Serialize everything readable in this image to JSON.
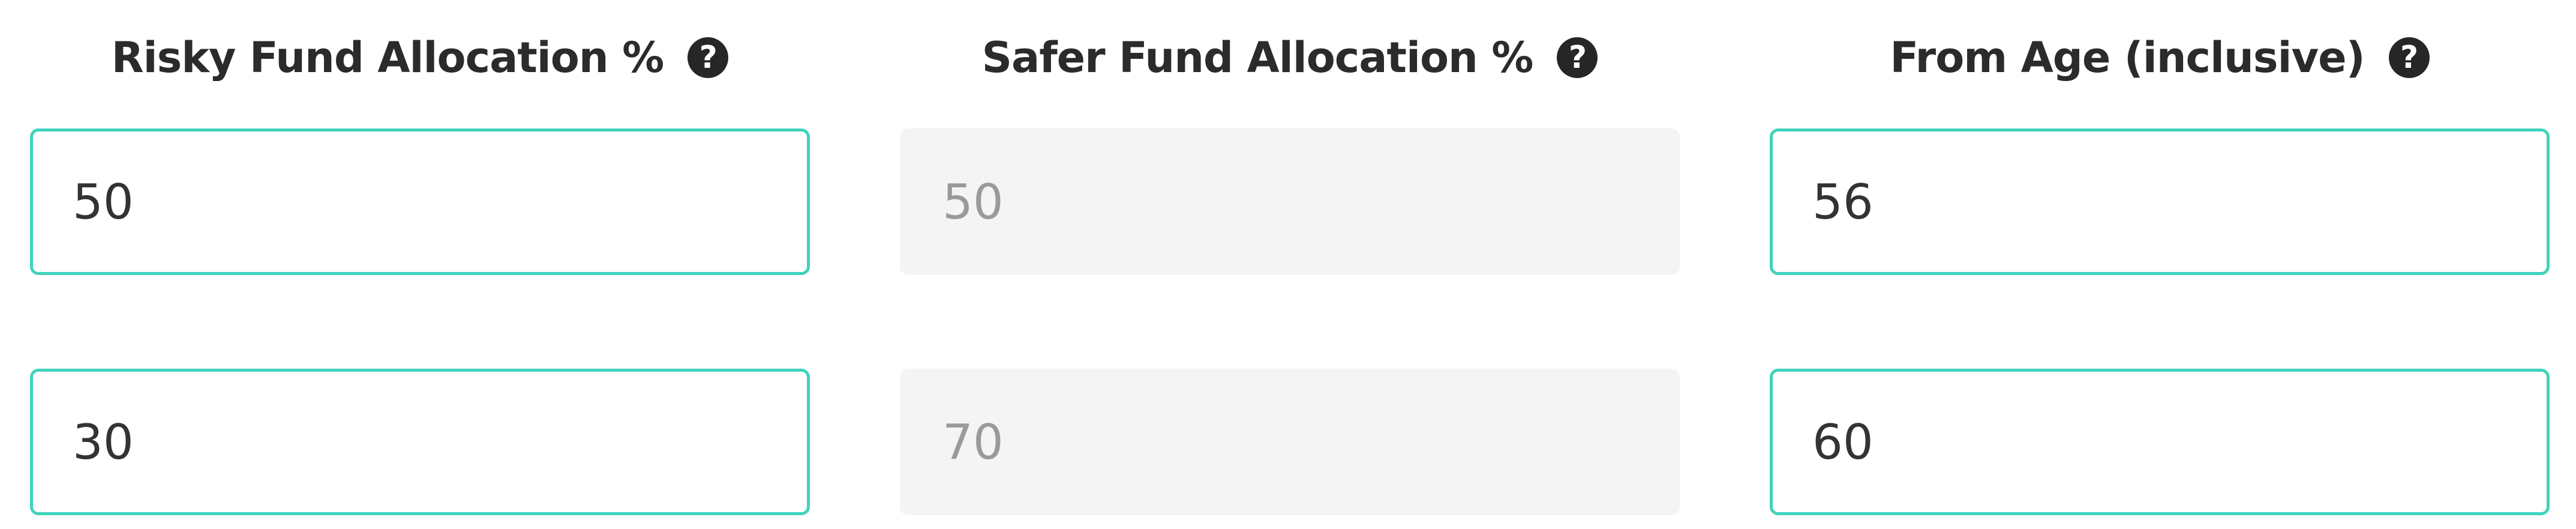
{
  "headers": {
    "risky": "Risky Fund Allocation %",
    "safer": "Safer Fund Allocation %",
    "from_age": "From Age (inclusive)",
    "help_glyph": "?"
  },
  "rows": [
    {
      "risky": "50",
      "safer": "50",
      "from_age": "56"
    },
    {
      "risky": "30",
      "safer": "70",
      "from_age": "60"
    }
  ],
  "colors": {
    "accent_border": "#3fd3bd",
    "readonly_bg": "#f4f4f4",
    "readonly_text": "#9a9a9a"
  },
  "icons": {
    "help": "question-circle-icon"
  }
}
